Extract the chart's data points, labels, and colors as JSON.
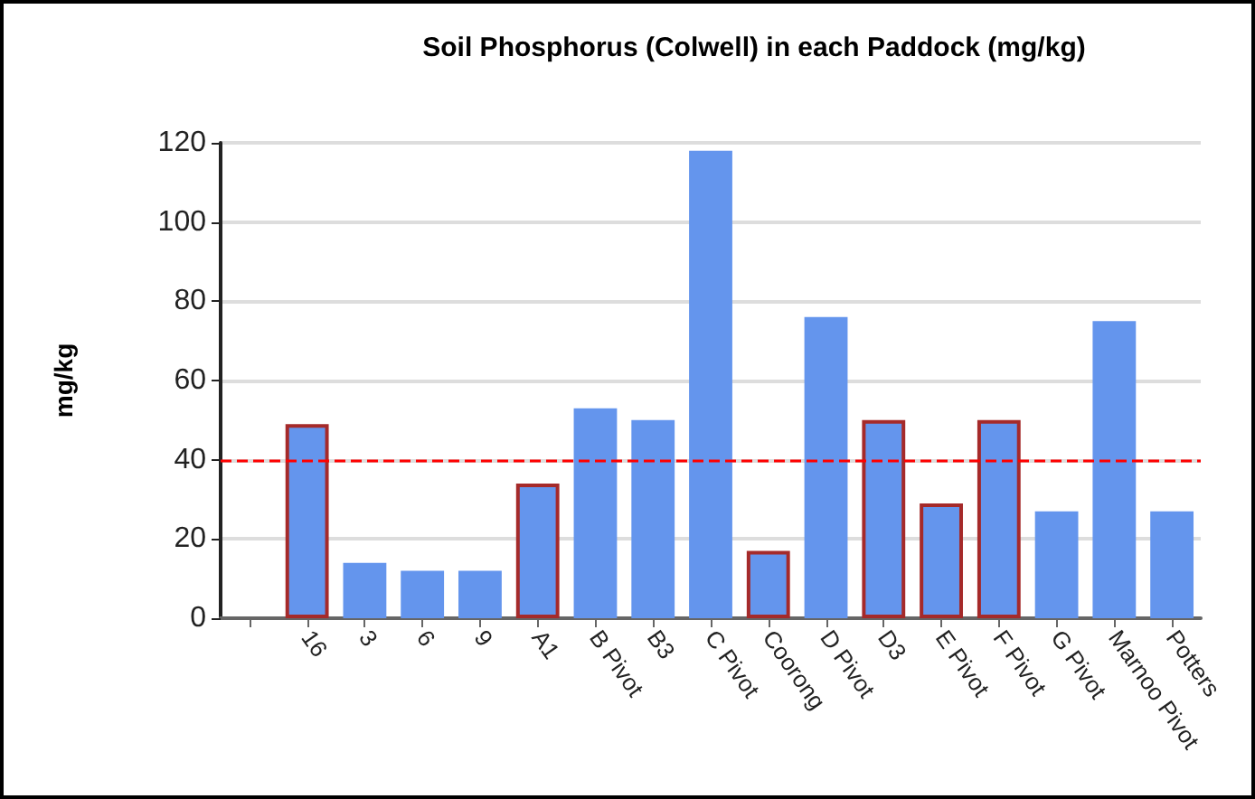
{
  "chart_data": {
    "type": "bar",
    "title": "Soil Phosphorus (Colwell) in each Paddock (mg/kg)",
    "ylabel": "mg/kg",
    "categories": [
      null,
      "16",
      "3",
      "6",
      "9",
      "A1",
      "B Pivot",
      "B3",
      "C Pivot",
      "Coorong",
      "D Pivot",
      "D3",
      "E Pivot",
      "F Pivot",
      "G Pivot",
      "Marnoo Pivot",
      "Potters"
    ],
    "series": [
      {
        "color": "#6495ed",
        "values": [
          null,
          null,
          14,
          12,
          12,
          null,
          53,
          50,
          118,
          null,
          76,
          null,
          null,
          null,
          27,
          75,
          27
        ]
      },
      {
        "color": "#a52a2a",
        "values": [
          null,
          49,
          null,
          null,
          null,
          34,
          null,
          null,
          null,
          17,
          null,
          50,
          29,
          50,
          null,
          null,
          null
        ]
      }
    ],
    "ylim": [
      0,
      120
    ],
    "yticks": [
      0,
      20,
      40,
      60,
      80,
      100,
      120
    ],
    "grid": "y",
    "ref_lines": [
      {
        "axis": "y",
        "value": 40,
        "color": "#ff0000",
        "line_style": "dashed"
      }
    ]
  }
}
